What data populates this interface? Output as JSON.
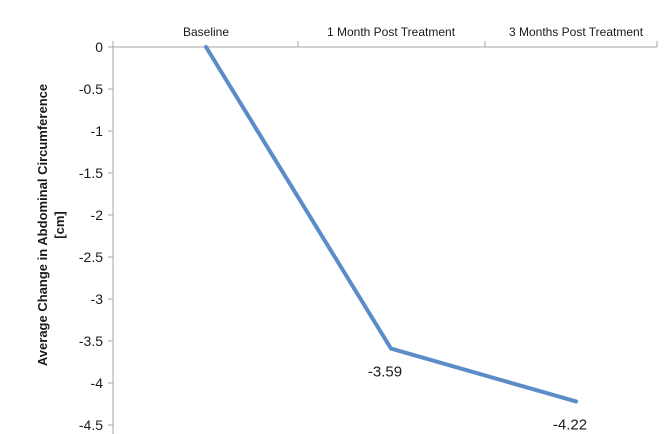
{
  "chart_data": {
    "type": "line",
    "title": "",
    "xlabel": "",
    "ylabel": "Average Change in Abdominal Circumference [cm]",
    "ylabel_lines": [
      "Average Change in Abdominal Circumference",
      "[cm]"
    ],
    "categories": [
      "Baseline",
      "1 Month Post Treatment",
      "3 Months Post Treatment"
    ],
    "series": [
      {
        "values": [
          0,
          -3.59,
          -4.22
        ],
        "color": "#5b8cc8",
        "data_labels": [
          "",
          "-3.59",
          "-4.22"
        ]
      }
    ],
    "ylim": [
      -4.5,
      0
    ],
    "yticks": [
      0,
      -0.5,
      -1,
      -1.5,
      -2,
      -2.5,
      -3,
      -3.5,
      -4,
      -4.5
    ],
    "ytick_labels": [
      "0",
      "-0.5",
      "-1",
      "-1.5",
      "-2",
      "-2.5",
      "-3",
      "-3.5",
      "-4",
      "-4.5"
    ],
    "x_axis_position": "top",
    "grid": false,
    "legend": "none"
  }
}
